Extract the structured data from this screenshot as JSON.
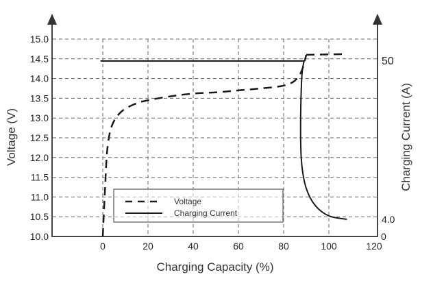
{
  "chart_data": {
    "type": "line",
    "title": "",
    "xlabel": "Charging Capacity (%)",
    "ylabel": "Voltage (V)",
    "y2label": "Charging Current (A)",
    "xlim": [
      -20,
      120
    ],
    "ylim": [
      10.0,
      15.0
    ],
    "y2_ticks_labeled": [
      "0",
      "4.0",
      "50"
    ],
    "x_ticks": [
      "0",
      "20",
      "40",
      "60",
      "80",
      "100",
      "120"
    ],
    "y_ticks": [
      "10.0",
      "10.5",
      "11.0",
      "11.5",
      "12.0",
      "12.5",
      "13.0",
      "13.5",
      "14.0",
      "14.5",
      "15.0"
    ],
    "grid": true,
    "legend_position": "lower-left inside plot",
    "series": [
      {
        "name": "Voltage",
        "style": "dashed",
        "axis": "left",
        "points": [
          [
            0,
            10.0
          ],
          [
            1,
            11.2
          ],
          [
            2,
            12.2
          ],
          [
            4,
            12.8
          ],
          [
            8,
            13.15
          ],
          [
            14,
            13.35
          ],
          [
            20,
            13.45
          ],
          [
            30,
            13.55
          ],
          [
            40,
            13.62
          ],
          [
            50,
            13.65
          ],
          [
            60,
            13.7
          ],
          [
            70,
            13.75
          ],
          [
            80,
            13.82
          ],
          [
            85,
            13.95
          ],
          [
            88,
            14.2
          ],
          [
            90,
            14.6
          ],
          [
            95,
            14.62
          ],
          [
            108,
            14.62
          ]
        ]
      },
      {
        "name": "Charging Current",
        "style": "solid",
        "axis": "right",
        "points": [
          [
            -1,
            50
          ],
          [
            89,
            50
          ],
          [
            88,
            45
          ],
          [
            87.5,
            30
          ],
          [
            88,
            20
          ],
          [
            90,
            13
          ],
          [
            94,
            8
          ],
          [
            100,
            5
          ],
          [
            108,
            4.0
          ]
        ]
      }
    ]
  },
  "axes": {
    "x_title": "Charging Capacity (%)",
    "y_title": "Voltage (V)",
    "y2_title": "Charging Current (A)",
    "x_ticks": [
      "0",
      "20",
      "40",
      "60",
      "80",
      "100",
      "120"
    ],
    "y_ticks": [
      "10.0",
      "10.5",
      "11.0",
      "11.5",
      "12.0",
      "12.5",
      "13.0",
      "13.5",
      "14.0",
      "14.5",
      "15.0"
    ],
    "y2_ticks": {
      "top": "50",
      "mid": "4.0",
      "zero": "0"
    }
  },
  "legend": {
    "items": [
      {
        "label": "Voltage",
        "style": "dashed"
      },
      {
        "label": "Charging Current",
        "style": "solid"
      }
    ]
  },
  "colors": {
    "axis": "#444444",
    "grid": "#555555",
    "line": "#1a1a1a",
    "legend_border": "#777777"
  }
}
